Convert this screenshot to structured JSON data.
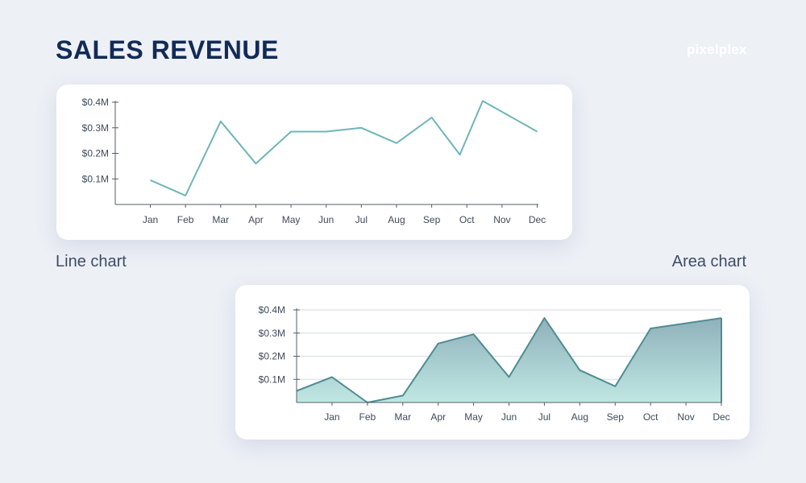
{
  "header": {
    "title": "SALES REVENUE",
    "brand": "pixelplex"
  },
  "captions": {
    "line": "Line chart",
    "area": "Area chart"
  },
  "colors": {
    "line_stroke": "#6fb5b8",
    "area_stroke": "#4f8c92",
    "area_fill_top": "#8fb1bb",
    "area_fill_bottom": "#bfe7e2",
    "axis": "#555e6b",
    "grid": "#d6dbe2"
  },
  "chart_data": [
    {
      "type": "line",
      "title": "",
      "categories": [
        "Jan",
        "Feb",
        "Mar",
        "Apr",
        "May",
        "Jun",
        "Jul",
        "Aug",
        "Sep",
        "Oct",
        "Nov",
        "Dec"
      ],
      "x": [
        1,
        2,
        3,
        4,
        5,
        6,
        7,
        8,
        9,
        9.8,
        10.45,
        12
      ],
      "values": [
        0.095,
        0.035,
        0.325,
        0.16,
        0.285,
        0.285,
        0.3,
        0.24,
        0.34,
        0.195,
        0.405,
        0.285
      ],
      "yticks": [
        "$0.1M",
        "$0.2M",
        "$0.3M",
        "$0.4M"
      ],
      "ytick_values": [
        0.1,
        0.2,
        0.3,
        0.4
      ],
      "ylim": [
        0,
        0.4
      ],
      "grid": false
    },
    {
      "type": "area",
      "title": "",
      "categories": [
        "Jan",
        "Feb",
        "Mar",
        "Apr",
        "May",
        "Jun",
        "Jul",
        "Aug",
        "Sep",
        "Oct",
        "Nov",
        "Dec"
      ],
      "x": [
        0,
        1,
        2,
        3,
        4,
        5,
        6,
        7,
        8,
        9,
        10,
        12
      ],
      "values": [
        0.05,
        0.11,
        0.0,
        0.03,
        0.255,
        0.295,
        0.11,
        0.365,
        0.14,
        0.07,
        0.32,
        0.365
      ],
      "yticks": [
        "$0.1M",
        "$0.2M",
        "$0.3M",
        "$0.4M"
      ],
      "ytick_values": [
        0.1,
        0.2,
        0.3,
        0.4
      ],
      "ylim": [
        0,
        0.4
      ],
      "grid": true
    }
  ]
}
